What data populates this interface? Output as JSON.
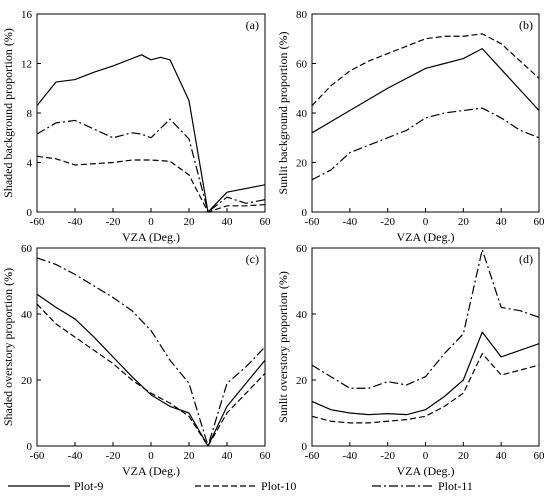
{
  "legend": [
    {
      "label": "Plot-9",
      "color": "#000000",
      "dash": "solid"
    },
    {
      "label": "Plot-10",
      "color": "#000000",
      "dash": "dashed"
    },
    {
      "label": "Plot-11",
      "color": "#000000",
      "dash": "dashdot"
    }
  ],
  "chart_data": [
    {
      "id": "a",
      "type": "line",
      "panel_label": "(a)",
      "xlabel": "VZA (Deg.)",
      "ylabel": "Shaded background proportion (%)",
      "xlim": [
        -60,
        60
      ],
      "ylim": [
        0,
        16
      ],
      "xticks": [
        -60,
        -40,
        -20,
        0,
        20,
        40,
        60
      ],
      "yticks": [
        0,
        4,
        8,
        12,
        16
      ],
      "grid": false,
      "series": [
        {
          "name": "Plot-9",
          "dash": "solid",
          "x": [
            -60,
            -50,
            -40,
            -30,
            -20,
            -10,
            -5,
            0,
            5,
            10,
            20,
            30,
            40,
            60
          ],
          "y": [
            8.6,
            10.5,
            10.7,
            11.3,
            11.8,
            12.4,
            12.7,
            12.3,
            12.5,
            12.3,
            9.0,
            0.0,
            1.6,
            2.2
          ]
        },
        {
          "name": "Plot-10",
          "dash": "dashed",
          "x": [
            -60,
            -50,
            -40,
            -30,
            -20,
            -10,
            0,
            10,
            20,
            30,
            40,
            50,
            60
          ],
          "y": [
            4.5,
            4.3,
            3.8,
            3.9,
            4.0,
            4.2,
            4.2,
            4.1,
            3.0,
            0.0,
            0.5,
            0.5,
            0.6
          ]
        },
        {
          "name": "Plot-11",
          "dash": "dashdot",
          "x": [
            -60,
            -50,
            -40,
            -30,
            -20,
            -10,
            -5,
            0,
            10,
            20,
            30,
            40,
            50,
            60
          ],
          "y": [
            6.3,
            7.2,
            7.4,
            6.7,
            6.0,
            6.4,
            6.3,
            6.0,
            7.5,
            5.9,
            0.0,
            1.2,
            0.7,
            1.0
          ]
        }
      ]
    },
    {
      "id": "b",
      "type": "line",
      "panel_label": "(b)",
      "xlabel": "VZA (Deg.)",
      "ylabel": "Sunlit background proportion (%)",
      "xlim": [
        -60,
        60
      ],
      "ylim": [
        0,
        80
      ],
      "xticks": [
        -60,
        -40,
        -20,
        0,
        20,
        40,
        60
      ],
      "yticks": [
        0,
        20,
        40,
        60,
        80
      ],
      "grid": false,
      "series": [
        {
          "name": "Plot-9",
          "dash": "solid",
          "x": [
            -60,
            -40,
            -20,
            0,
            10,
            20,
            30,
            60
          ],
          "y": [
            32,
            41,
            50,
            58,
            60,
            62,
            66,
            41
          ]
        },
        {
          "name": "Plot-10",
          "dash": "dashed",
          "x": [
            -60,
            -50,
            -40,
            -30,
            -20,
            -10,
            0,
            10,
            20,
            30,
            40,
            50,
            60
          ],
          "y": [
            43,
            51,
            57,
            61,
            64,
            67,
            70,
            71,
            71,
            72,
            68,
            61,
            54
          ]
        },
        {
          "name": "Plot-11",
          "dash": "dashdot",
          "x": [
            -60,
            -50,
            -40,
            -30,
            -20,
            -10,
            0,
            10,
            20,
            30,
            40,
            50,
            60
          ],
          "y": [
            13,
            17,
            24,
            27,
            30,
            33,
            38,
            40,
            41,
            42,
            38,
            33,
            30
          ]
        }
      ]
    },
    {
      "id": "c",
      "type": "line",
      "panel_label": "(c)",
      "xlabel": "VZA (Deg.)",
      "ylabel": "Shaded overstory proportion (%)",
      "xlim": [
        -60,
        60
      ],
      "ylim": [
        0,
        60
      ],
      "xticks": [
        -60,
        -40,
        -20,
        0,
        20,
        40,
        60
      ],
      "yticks": [
        0,
        20,
        40,
        60
      ],
      "grid": false,
      "series": [
        {
          "name": "Plot-9",
          "dash": "solid",
          "x": [
            -60,
            -50,
            -40,
            -30,
            -20,
            -10,
            0,
            10,
            20,
            30,
            40,
            50,
            60
          ],
          "y": [
            46,
            42,
            38.5,
            33,
            27,
            21,
            15.5,
            12,
            10,
            0,
            12,
            19,
            26
          ]
        },
        {
          "name": "Plot-10",
          "dash": "dashed",
          "x": [
            -60,
            -50,
            -40,
            -30,
            -20,
            -10,
            0,
            10,
            20,
            30,
            40,
            50,
            60
          ],
          "y": [
            43,
            37,
            33,
            29,
            25,
            20,
            16,
            13,
            9,
            0,
            10,
            16,
            22
          ]
        },
        {
          "name": "Plot-11",
          "dash": "dashdot",
          "x": [
            -60,
            -50,
            -40,
            -30,
            -20,
            -10,
            0,
            10,
            20,
            30,
            40,
            50,
            60
          ],
          "y": [
            57,
            55,
            52,
            48.5,
            45,
            41,
            35,
            26,
            19,
            0,
            19,
            24,
            30
          ]
        }
      ]
    },
    {
      "id": "d",
      "type": "line",
      "panel_label": "(d)",
      "xlabel": "VZA (Deg.)",
      "ylabel": "Sunlit overstory proportion (%)",
      "xlim": [
        -60,
        60
      ],
      "ylim": [
        0,
        60
      ],
      "xticks": [
        -60,
        -40,
        -20,
        0,
        20,
        40,
        60
      ],
      "yticks": [
        0,
        20,
        40,
        60
      ],
      "grid": false,
      "series": [
        {
          "name": "Plot-9",
          "dash": "solid",
          "x": [
            -60,
            -50,
            -40,
            -30,
            -20,
            -10,
            0,
            10,
            20,
            30,
            40,
            50,
            60
          ],
          "y": [
            13.5,
            11,
            10,
            9.5,
            9.8,
            9.5,
            11,
            15,
            20,
            34.5,
            27,
            29,
            31
          ]
        },
        {
          "name": "Plot-10",
          "dash": "dashed",
          "x": [
            -60,
            -50,
            -40,
            -30,
            -20,
            -10,
            0,
            10,
            20,
            30,
            40,
            50,
            60
          ],
          "y": [
            9,
            7.5,
            7,
            7,
            7.5,
            8,
            9,
            12,
            16,
            28,
            21.5,
            23,
            24.5
          ]
        },
        {
          "name": "Plot-11",
          "dash": "dashdot",
          "x": [
            -60,
            -50,
            -40,
            -30,
            -20,
            -10,
            0,
            10,
            20,
            30,
            40,
            50,
            60
          ],
          "y": [
            24.5,
            21,
            17.5,
            17.5,
            19.5,
            18.5,
            21,
            28,
            34,
            59.5,
            42,
            41,
            39
          ]
        }
      ]
    }
  ]
}
